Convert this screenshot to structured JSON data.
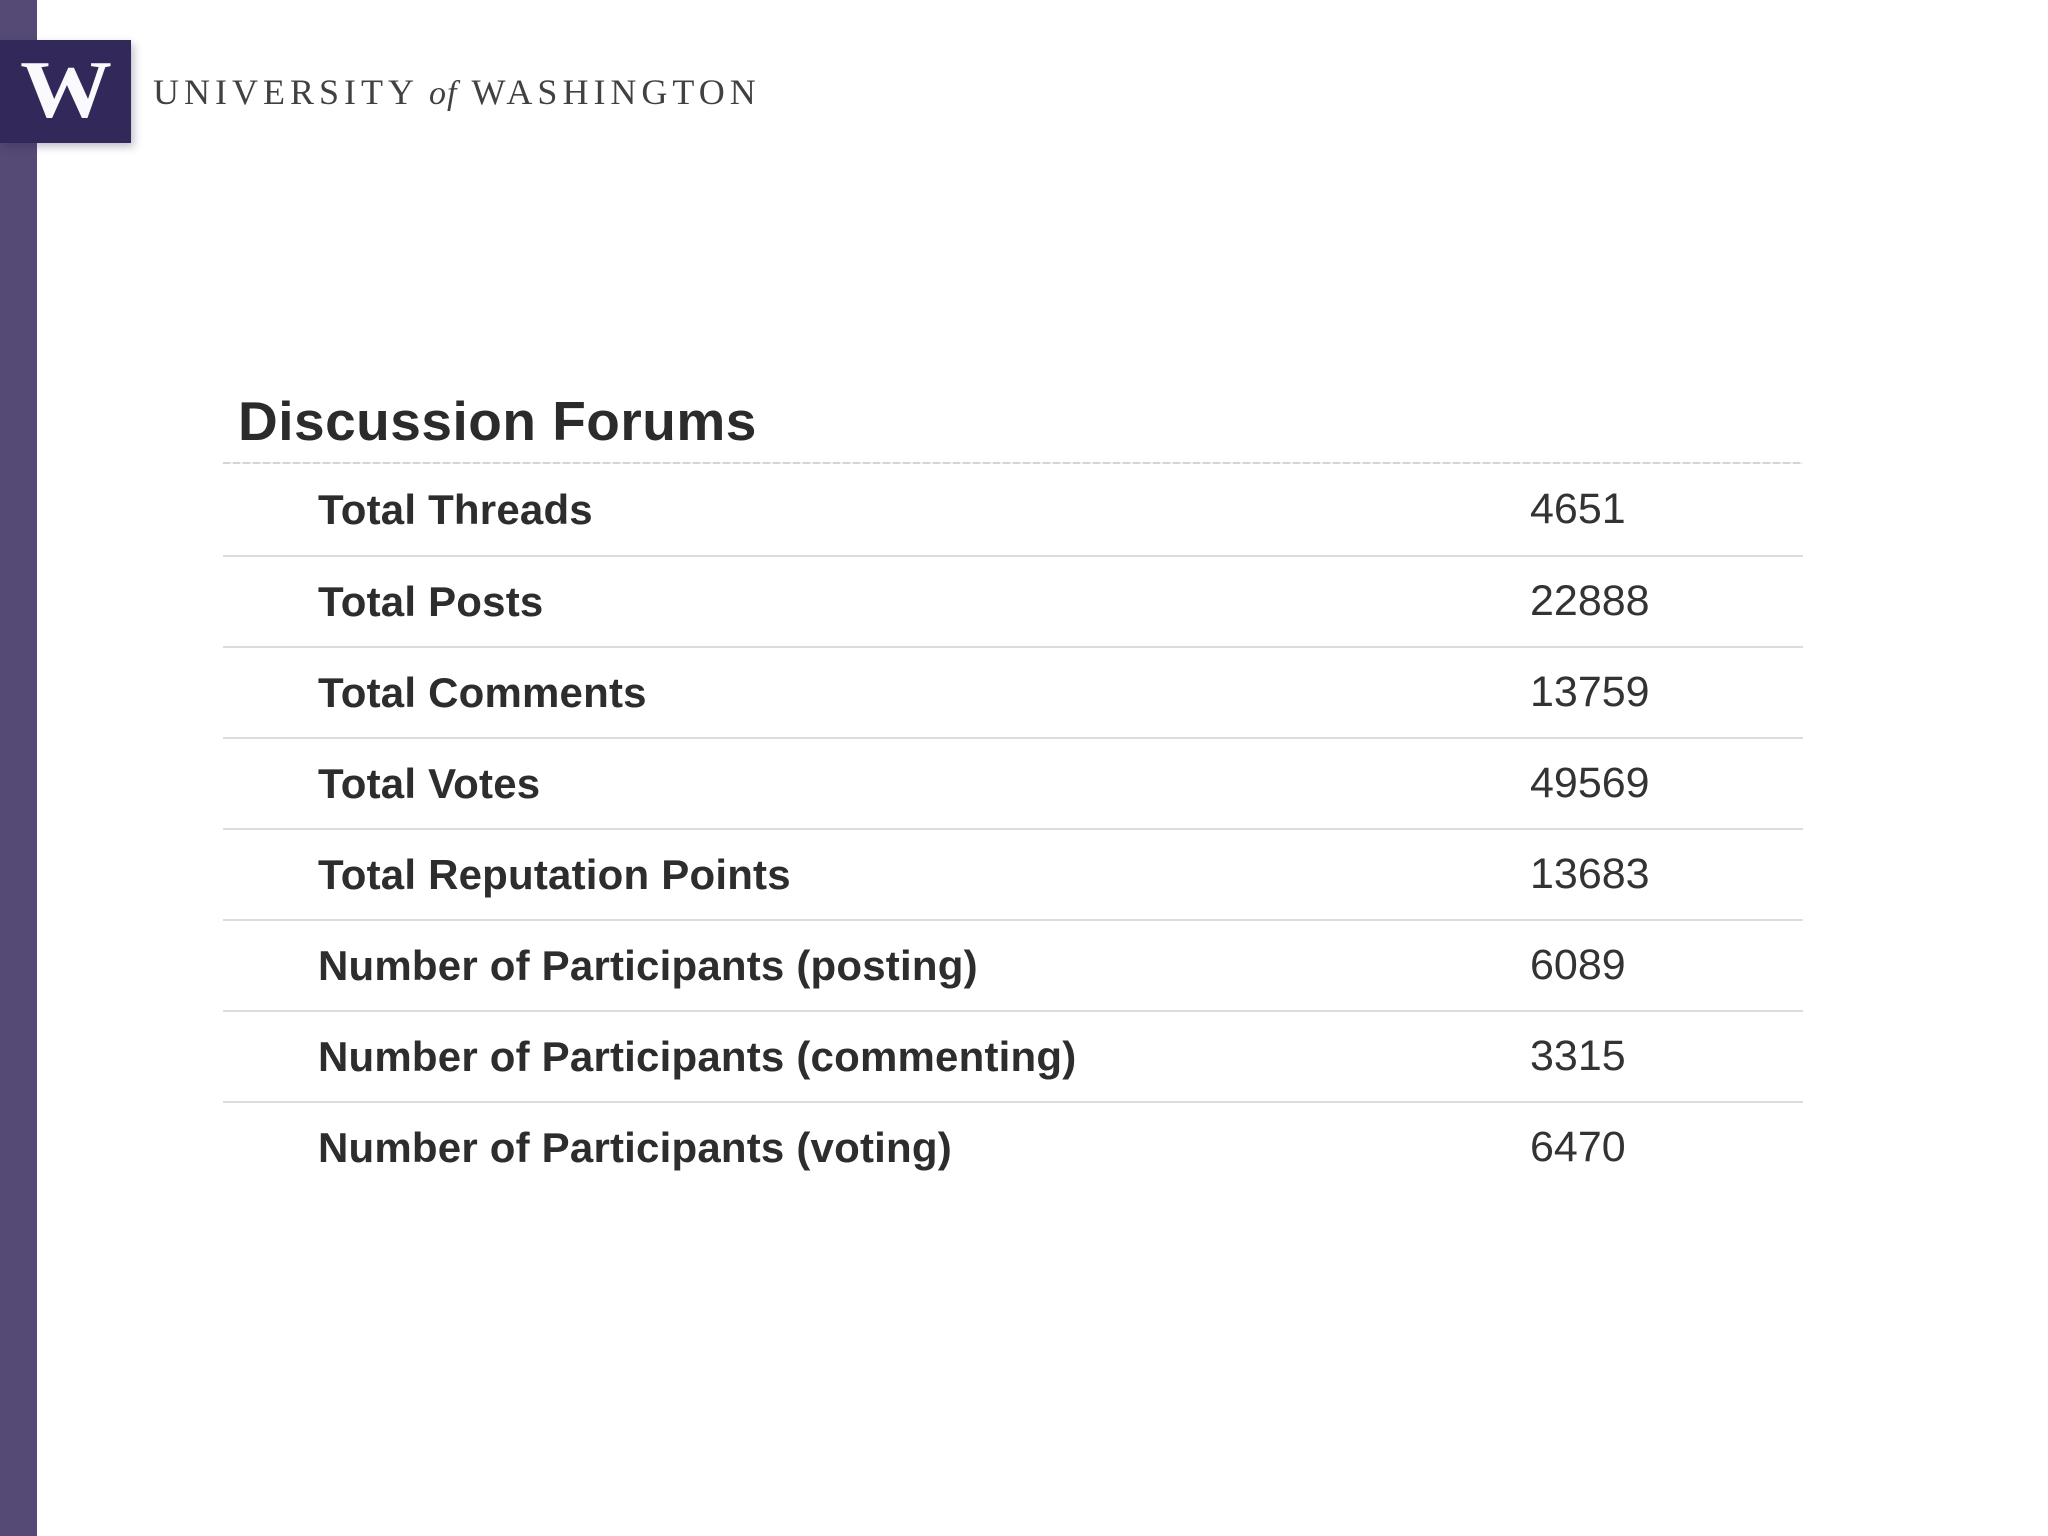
{
  "branding": {
    "stripe_color": "#554a76",
    "block_color": "#33285a",
    "logo_letter": "W",
    "wordmark": {
      "part1": "UNIVERSITY",
      "part2": "of",
      "part3": "WASHINGTON",
      "color": "#414141"
    }
  },
  "main": {
    "title": "Discussion Forums",
    "stats": [
      {
        "label": "Total Threads",
        "value": "4651"
      },
      {
        "label": "Total Posts",
        "value": "22888"
      },
      {
        "label": "Total Comments",
        "value": "13759"
      },
      {
        "label": "Total Votes",
        "value": "49569"
      },
      {
        "label": "Total Reputation Points",
        "value": "13683"
      },
      {
        "label": "Number of Participants (posting)",
        "value": "6089"
      },
      {
        "label": "Number of Participants (commenting)",
        "value": "3315"
      },
      {
        "label": "Number of Participants (voting)",
        "value": "6470"
      }
    ]
  }
}
